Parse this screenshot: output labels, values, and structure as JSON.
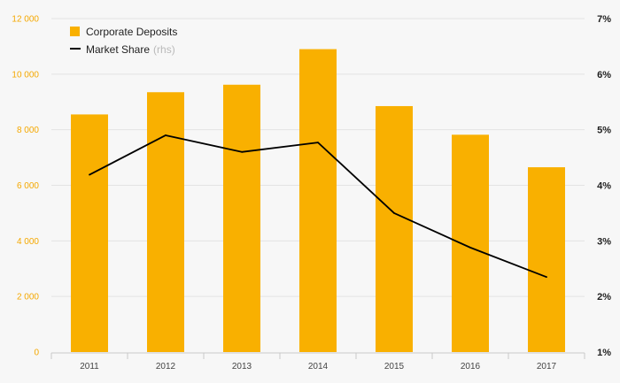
{
  "chart_data": {
    "type": "bar",
    "categories": [
      "2011",
      "2012",
      "2013",
      "2014",
      "2015",
      "2016",
      "2017"
    ],
    "series": [
      {
        "name": "Corporate Deposits",
        "type": "bar",
        "axis": "left",
        "color": "#f9b000",
        "values": [
          8550,
          9350,
          9620,
          10900,
          8850,
          7820,
          6650
        ]
      },
      {
        "name": "Market Share",
        "name_suffix": "(rhs)",
        "type": "line",
        "axis": "right",
        "color": "#000000",
        "values": [
          4.19,
          4.9,
          4.6,
          4.77,
          3.5,
          2.88,
          2.35
        ]
      }
    ],
    "y_left": {
      "lim": [
        0,
        12000
      ],
      "ticks": [
        0,
        2000,
        4000,
        6000,
        8000,
        10000,
        12000
      ],
      "tick_labels": [
        "0",
        "2 000",
        "4 000",
        "6 000",
        "8 000",
        "10 000",
        "12 000"
      ],
      "color": "#f5a800"
    },
    "y_right": {
      "lim": [
        1,
        7
      ],
      "ticks": [
        1,
        2,
        3,
        4,
        5,
        6,
        7
      ],
      "tick_labels": [
        "1%",
        "2%",
        "3%",
        "4%",
        "5%",
        "6%",
        "7%"
      ]
    },
    "grid": true,
    "legend_position": "top-left",
    "title": "",
    "xlabel": "",
    "ylabel": ""
  }
}
